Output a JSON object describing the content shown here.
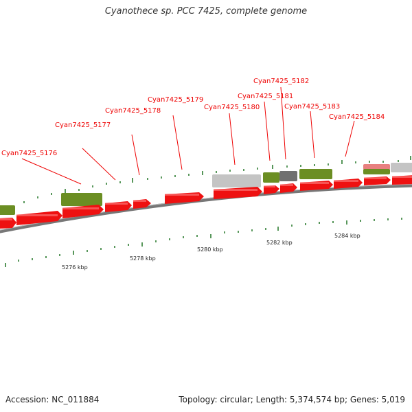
{
  "title": "Cyanothece sp. PCC 7425, complete genome",
  "footer": {
    "accession": "Accession: NC_011884",
    "summary": "Topology: circular; Length: 5,374,574 bp; Genes: 5,019"
  },
  "colors": {
    "cds_forward": "#ee1111",
    "rna_track": "#6b8e23",
    "gray_feature": "#c0c0c0",
    "dark_gray_feature": "#707070",
    "pink_feature": "#e88080",
    "backbone": "#777777",
    "tick": "#2e7d32",
    "label": "#ee0000"
  },
  "scale_labels": [
    "5276 kbp",
    "5278 kbp",
    "5280 kbp",
    "5282 kbp",
    "5284 kbp"
  ],
  "gene_labels": [
    "Cyan7425_5176",
    "Cyan7425_5177",
    "Cyan7425_5178",
    "Cyan7425_5179",
    "Cyan7425_5180",
    "Cyan7425_5181",
    "Cyan7425_5182",
    "Cyan7425_5183",
    "Cyan7425_5184"
  ]
}
